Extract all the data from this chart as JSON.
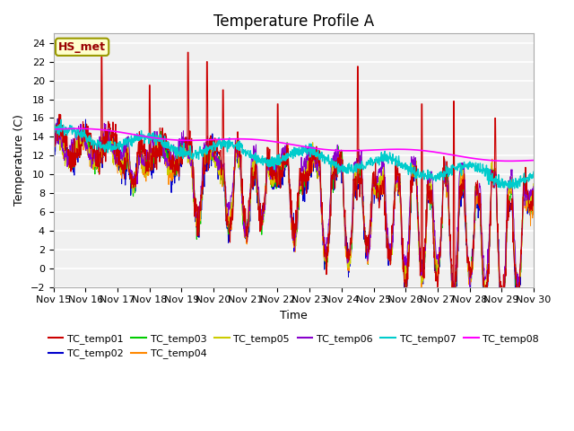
{
  "title": "Temperature Profile A",
  "xlabel": "Time",
  "ylabel": "Temperature (C)",
  "ylim": [
    -2,
    25
  ],
  "yticks": [
    -2,
    0,
    2,
    4,
    6,
    8,
    10,
    12,
    14,
    16,
    18,
    20,
    22,
    24
  ],
  "xtick_labels": [
    "Nov 15",
    "Nov 16",
    "Nov 17",
    "Nov 18",
    "Nov 19",
    "Nov 20",
    "Nov 21",
    "Nov 22",
    "Nov 23",
    "Nov 24",
    "Nov 25",
    "Nov 26",
    "Nov 27",
    "Nov 28",
    "Nov 29",
    "Nov 30"
  ],
  "series_colors": {
    "TC_temp01": "#cc0000",
    "TC_temp02": "#0000cc",
    "TC_temp03": "#00cc00",
    "TC_temp04": "#ff8800",
    "TC_temp05": "#cccc00",
    "TC_temp06": "#8800cc",
    "TC_temp07": "#00cccc",
    "TC_temp08": "#ff00ff"
  },
  "legend_label": "HS_met",
  "plot_bg_color": "#f0f0f0",
  "title_fontsize": 12,
  "axis_fontsize": 9,
  "tick_fontsize": 8
}
